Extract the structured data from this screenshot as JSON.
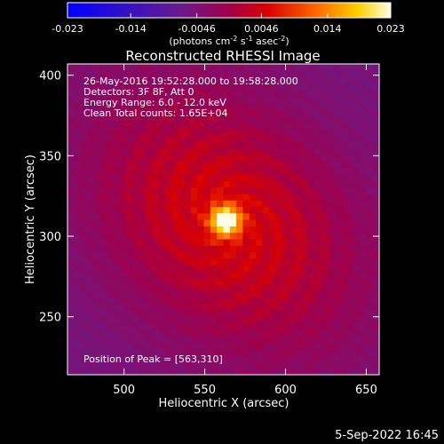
{
  "chart_data": {
    "type": "heatmap",
    "title": "Reconstructed RHESSI Image",
    "xlabel": "Heliocentric X (arcsec)",
    "ylabel": "Heliocentric Y (arcsec)",
    "xlim": [
      465,
      658
    ],
    "ylim": [
      214,
      407
    ],
    "x_ticks": [
      500,
      550,
      600,
      650
    ],
    "y_ticks": [
      250,
      300,
      350,
      400
    ],
    "colorbar": {
      "min": -0.023,
      "max": 0.023,
      "ticks": [
        "-0.023",
        "-0.014",
        "-0.0046",
        "0.0046",
        "0.014",
        "0.023"
      ],
      "label_prefix": "(photons cm",
      "label_exp1": "-2",
      "label_mid": " s",
      "label_exp2": "-1",
      "label_mid2": " asec",
      "label_exp3": "-2",
      "label_suffix": ")"
    },
    "annotations": [
      "26-May-2016 19:52:28.000 to 19:58:28.000",
      "Detectors: 3F 8F, Att 0",
      "Energy Range: 6.0 - 12.0 keV",
      "Clean     Total counts: 1.65E+04"
    ],
    "peak_label": "Position of Peak = [563,310]",
    "peak": [
      563,
      310
    ],
    "peak_value": 0.023,
    "grid": false
  },
  "timestamp": "5-Sep-2022 16:45"
}
